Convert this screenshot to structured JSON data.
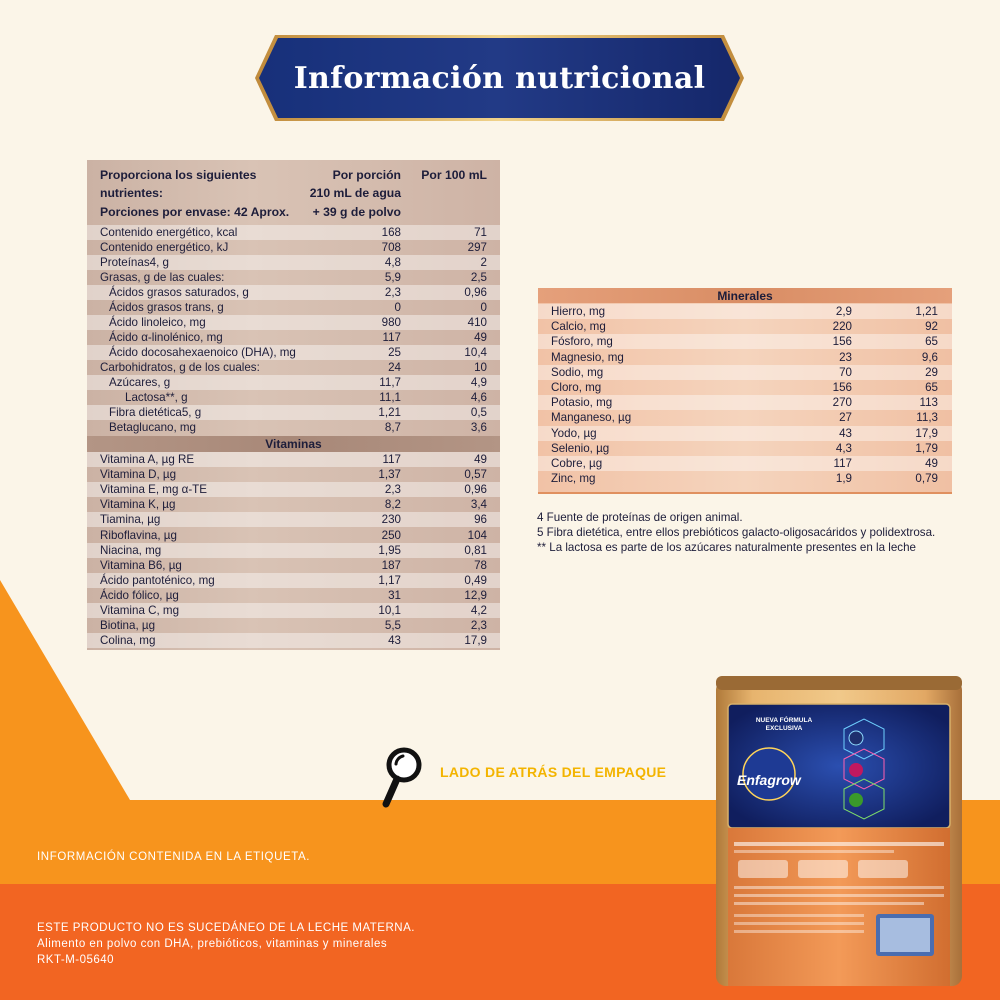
{
  "title": "Información nutricional",
  "nutrition": {
    "header": {
      "col_name_1": "Proporciona los siguientes",
      "col_name_2": "nutrientes:",
      "col_name_3": "Porciones por envase: 42 Aprox.",
      "col_portion_1": "Por porción",
      "col_portion_2": "210 mL de agua",
      "col_portion_3": "+ 39 g de polvo",
      "col_100": "Por 100 mL"
    },
    "rows": [
      {
        "name": "Contenido energético, kcal",
        "portion": "168",
        "per100": "71",
        "indent": 0
      },
      {
        "name": "Contenido energético, kJ",
        "portion": "708",
        "per100": "297",
        "indent": 0
      },
      {
        "name": "Proteínas4, g",
        "portion": "4,8",
        "per100": "2",
        "indent": 0
      },
      {
        "name": "Grasas, g de las cuales:",
        "portion": "5,9",
        "per100": "2,5",
        "indent": 0
      },
      {
        "name": "Ácidos grasos saturados, g",
        "portion": "2,3",
        "per100": "0,96",
        "indent": 1
      },
      {
        "name": "Ácidos grasos trans, g",
        "portion": "0",
        "per100": "0",
        "indent": 1
      },
      {
        "name": "Ácido linoleico, mg",
        "portion": "980",
        "per100": "410",
        "indent": 1
      },
      {
        "name": "Ácido α-linolénico, mg",
        "portion": "117",
        "per100": "49",
        "indent": 1
      },
      {
        "name": "Ácido docosahexaenoico (DHA), mg",
        "portion": "25",
        "per100": "10,4",
        "indent": 1
      },
      {
        "name": "Carbohidratos, g de los cuales:",
        "portion": "24",
        "per100": "10",
        "indent": 0
      },
      {
        "name": "Azúcares, g",
        "portion": "11,7",
        "per100": "4,9",
        "indent": 1
      },
      {
        "name": "Lactosa**, g",
        "portion": "11,1",
        "per100": "4,6",
        "indent": 2
      },
      {
        "name": "Fibra dietética5, g",
        "portion": "1,21",
        "per100": "0,5",
        "indent": 1
      },
      {
        "name": "Betaglucano, mg",
        "portion": "8,7",
        "per100": "3,6",
        "indent": 1
      }
    ],
    "vitamins_title": "Vitaminas",
    "vitamins": [
      {
        "name": "Vitamina A, µg RE",
        "portion": "117",
        "per100": "49"
      },
      {
        "name": "Vitamina D, µg",
        "portion": "1,37",
        "per100": "0,57"
      },
      {
        "name": "Vitamina E, mg α-TE",
        "portion": "2,3",
        "per100": "0,96"
      },
      {
        "name": "Vitamina K, µg",
        "portion": "8,2",
        "per100": "3,4"
      },
      {
        "name": "Tiamina, µg",
        "portion": "230",
        "per100": "96"
      },
      {
        "name": "Riboflavina, µg",
        "portion": "250",
        "per100": "104"
      },
      {
        "name": "Niacina, mg",
        "portion": "1,95",
        "per100": "0,81"
      },
      {
        "name": "Vitamina B6, µg",
        "portion": "187",
        "per100": "78"
      },
      {
        "name": "Ácido pantoténico, mg",
        "portion": "1,17",
        "per100": "0,49"
      },
      {
        "name": "Ácido fólico, µg",
        "portion": "31",
        "per100": "12,9"
      },
      {
        "name": "Vitamina C, mg",
        "portion": "10,1",
        "per100": "4,2"
      },
      {
        "name": "Biotina, µg",
        "portion": "5,5",
        "per100": "2,3"
      },
      {
        "name": "Colina, mg",
        "portion": "43",
        "per100": "17,9"
      }
    ]
  },
  "minerals": {
    "title": "Minerales",
    "rows": [
      {
        "name": "Hierro, mg",
        "portion": "2,9",
        "per100": "1,21"
      },
      {
        "name": "Calcio, mg",
        "portion": "220",
        "per100": "92"
      },
      {
        "name": "Fósforo, mg",
        "portion": "156",
        "per100": "65"
      },
      {
        "name": "Magnesio, mg",
        "portion": "23",
        "per100": "9,6"
      },
      {
        "name": "Sodio, mg",
        "portion": "70",
        "per100": "29"
      },
      {
        "name": "Cloro, mg",
        "portion": "156",
        "per100": "65"
      },
      {
        "name": "Potasio, mg",
        "portion": "270",
        "per100": "113"
      },
      {
        "name": "Manganeso, µg",
        "portion": "27",
        "per100": "11,3"
      },
      {
        "name": "Yodo, µg",
        "portion": "43",
        "per100": "17,9"
      },
      {
        "name": "Selenio, µg",
        "portion": "4,3",
        "per100": "1,79"
      },
      {
        "name": "Cobre, µg",
        "portion": "117",
        "per100": "49"
      },
      {
        "name": "Zinc, mg",
        "portion": "1,9",
        "per100": "0,79"
      }
    ]
  },
  "footnotes": [
    "4 Fuente de proteínas de origen animal.",
    "5 Fibra dietética, entre ellos prebióticos galacto-oligosacáridos y polidextrosa.",
    "** La lactosa es parte de los azúcares naturalmente presentes en la leche"
  ],
  "back_label": "LADO DE ATRÁS DEL EMPAQUE",
  "label_info": "INFORMACIÓN CONTENIDA EN LA ETIQUETA.",
  "disclaimer": {
    "line1": "ESTE PRODUCTO NO ES SUCEDÁNEO DE LA LECHE MATERNA.",
    "line2": " Alimento en polvo con DHA, prebióticos, vitaminas y minerales",
    "line3": "RKT-M-05640"
  },
  "can": {
    "brand": "Enfagrow",
    "new_formula": "NUEVA FÓRMULA EXCLUSIVA"
  },
  "colors": {
    "navy": "#1a2a6c",
    "gold": "#c9a24a",
    "orange": "#f7941d",
    "orange_dark": "#f26522",
    "cream": "#fbf5e8",
    "label_yellow": "#f3b400"
  },
  "icons": {
    "magnifier": "magnifier-icon"
  }
}
